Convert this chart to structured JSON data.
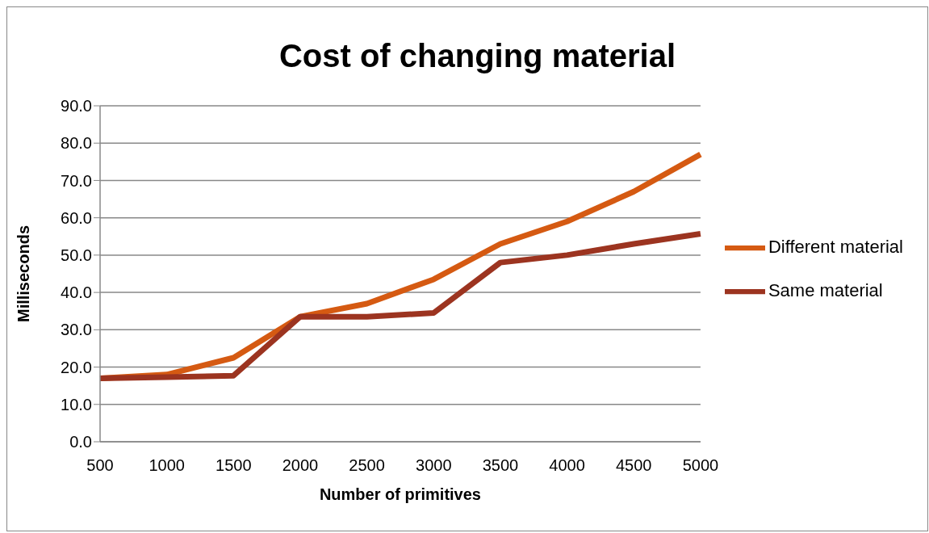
{
  "chart_data": {
    "type": "line",
    "title": "Cost of changing material",
    "xlabel": "Number of primitives",
    "ylabel": "Milliseconds",
    "categories": [
      "500",
      "1000",
      "1500",
      "2000",
      "2500",
      "3000",
      "3500",
      "4000",
      "4500",
      "5000"
    ],
    "series": [
      {
        "name": "Different material",
        "color": "#d55a12",
        "values": [
          17,
          18,
          22.5,
          33.5,
          37,
          43.5,
          53,
          59,
          67,
          77
        ]
      },
      {
        "name": "Same material",
        "color": "#9c3420",
        "values": [
          17,
          17.3,
          17.7,
          33.5,
          33.5,
          34.5,
          48,
          50,
          53,
          55.7
        ]
      }
    ],
    "ylim": [
      0,
      90
    ],
    "yticks": [
      {
        "value": 0,
        "label": "0.0"
      },
      {
        "value": 10,
        "label": "10.0"
      },
      {
        "value": 20,
        "label": "20.0"
      },
      {
        "value": 30,
        "label": "30.0"
      },
      {
        "value": 40,
        "label": "40.0"
      },
      {
        "value": 50,
        "label": "50.0"
      },
      {
        "value": 60,
        "label": "60.0"
      },
      {
        "value": 70,
        "label": "70.0"
      },
      {
        "value": 80,
        "label": "80.0"
      },
      {
        "value": 90,
        "label": "90.0"
      }
    ],
    "grid": "y",
    "legend": "right",
    "marker": "none",
    "line_style": "solid"
  }
}
